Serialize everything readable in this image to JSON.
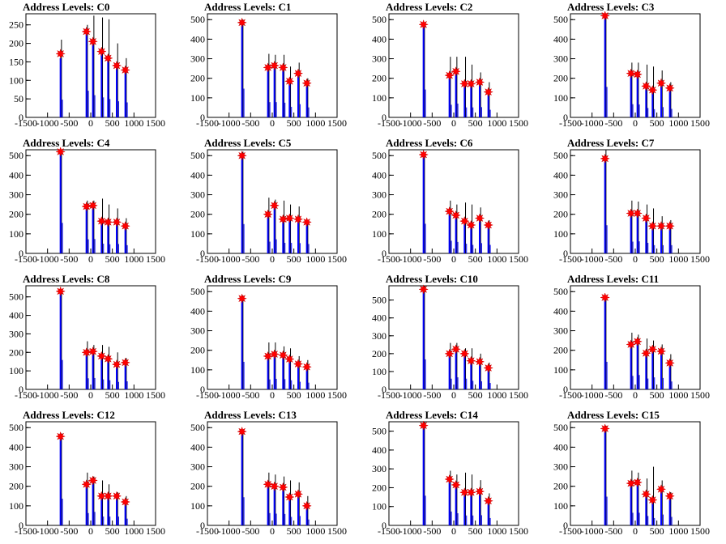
{
  "figure": {
    "background": "#ffffff",
    "histogram_color": "#0000ff",
    "raw_color": "#000000",
    "marker_color": "#ff0000"
  },
  "chart_data": [
    {
      "type": "bar",
      "title": "Address Levels: C0",
      "xlim": [
        -1500,
        1500
      ],
      "ylim": [
        0,
        280
      ],
      "xticks": [
        -1500,
        -1000,
        -500,
        0,
        500,
        1000,
        1500
      ],
      "yticks": [
        0,
        50,
        100,
        150,
        200,
        250
      ],
      "peaks_x": [
        -700,
        -100,
        50,
        250,
        400,
        600,
        800
      ],
      "raw_heights": [
        210,
        250,
        275,
        270,
        265,
        200,
        160
      ],
      "hist_heights": [
        160,
        240,
        200,
        180,
        165,
        145,
        135
      ],
      "markers_y": [
        172,
        232,
        205,
        178,
        160,
        140,
        128
      ]
    },
    {
      "type": "bar",
      "title": "Address Levels: C1",
      "xlim": [
        -1500,
        1500
      ],
      "ylim": [
        0,
        530
      ],
      "xticks": [
        -1500,
        -1000,
        -500,
        0,
        500,
        1000,
        1500
      ],
      "yticks": [
        0,
        100,
        200,
        300,
        400,
        500
      ],
      "peaks_x": [
        -700,
        -100,
        50,
        250,
        400,
        600,
        800
      ],
      "raw_heights": [
        500,
        325,
        320,
        320,
        260,
        280,
        200
      ],
      "hist_heights": [
        490,
        260,
        260,
        250,
        180,
        225,
        170
      ],
      "markers_y": [
        485,
        255,
        265,
        255,
        185,
        225,
        175
      ]
    },
    {
      "type": "bar",
      "title": "Address Levels: C2",
      "xlim": [
        -1500,
        1500
      ],
      "ylim": [
        0,
        530
      ],
      "xticks": [
        -1500,
        -1000,
        -500,
        0,
        500,
        1000,
        1500
      ],
      "yticks": [
        0,
        100,
        200,
        300,
        400,
        500
      ],
      "peaks_x": [
        -700,
        -100,
        50,
        250,
        400,
        600,
        800
      ],
      "raw_heights": [
        480,
        310,
        310,
        310,
        270,
        230,
        180
      ],
      "hist_heights": [
        475,
        215,
        235,
        170,
        170,
        175,
        130
      ],
      "markers_y": [
        475,
        215,
        235,
        172,
        172,
        180,
        130
      ]
    },
    {
      "type": "bar",
      "title": "Address Levels: C3",
      "xlim": [
        -1500,
        1500
      ],
      "ylim": [
        0,
        530
      ],
      "xticks": [
        -1500,
        -1000,
        -500,
        0,
        500,
        1000,
        1500
      ],
      "yticks": [
        0,
        100,
        200,
        300,
        400,
        500
      ],
      "peaks_x": [
        -700,
        -100,
        50,
        250,
        400,
        600,
        800
      ],
      "raw_heights": [
        530,
        280,
        280,
        270,
        260,
        240,
        180
      ],
      "hist_heights": [
        520,
        225,
        220,
        160,
        140,
        175,
        145
      ],
      "markers_y": [
        520,
        225,
        220,
        160,
        140,
        175,
        150
      ]
    },
    {
      "type": "bar",
      "title": "Address Levels: C4",
      "xlim": [
        -1500,
        1500
      ],
      "ylim": [
        0,
        530
      ],
      "xticks": [
        -1500,
        -1000,
        -500,
        0,
        500,
        1000,
        1500
      ],
      "yticks": [
        0,
        100,
        200,
        300,
        400,
        500
      ],
      "peaks_x": [
        -700,
        -100,
        50,
        250,
        400,
        600,
        800
      ],
      "raw_heights": [
        530,
        270,
        270,
        280,
        250,
        230,
        180
      ],
      "hist_heights": [
        520,
        240,
        245,
        165,
        155,
        160,
        140
      ],
      "markers_y": [
        520,
        240,
        245,
        165,
        160,
        160,
        140
      ]
    },
    {
      "type": "bar",
      "title": "Address Levels: C5",
      "xlim": [
        -1500,
        1500
      ],
      "ylim": [
        0,
        530
      ],
      "xticks": [
        -1500,
        -1000,
        -500,
        0,
        500,
        1000,
        1500
      ],
      "yticks": [
        0,
        100,
        200,
        300,
        400,
        500
      ],
      "peaks_x": [
        -700,
        -100,
        50,
        250,
        400,
        600,
        800
      ],
      "raw_heights": [
        520,
        285,
        275,
        270,
        250,
        240,
        170
      ],
      "hist_heights": [
        500,
        200,
        240,
        180,
        180,
        175,
        160
      ],
      "markers_y": [
        500,
        200,
        245,
        175,
        180,
        175,
        160
      ]
    },
    {
      "type": "bar",
      "title": "Address Levels: C6",
      "xlim": [
        -1500,
        1500
      ],
      "ylim": [
        0,
        530
      ],
      "xticks": [
        -1500,
        -1000,
        -500,
        0,
        500,
        1000,
        1500
      ],
      "yticks": [
        0,
        100,
        200,
        300,
        400,
        500
      ],
      "peaks_x": [
        -700,
        -100,
        50,
        250,
        400,
        600,
        800
      ],
      "raw_heights": [
        510,
        270,
        250,
        260,
        250,
        235,
        170
      ],
      "hist_heights": [
        505,
        215,
        195,
        165,
        145,
        175,
        145
      ],
      "markers_y": [
        505,
        215,
        195,
        165,
        145,
        180,
        145
      ]
    },
    {
      "type": "bar",
      "title": "Address Levels: C7",
      "xlim": [
        -1500,
        1500
      ],
      "ylim": [
        0,
        530
      ],
      "xticks": [
        -1500,
        -1000,
        -500,
        0,
        500,
        1000,
        1500
      ],
      "yticks": [
        0,
        100,
        200,
        300,
        400,
        500
      ],
      "peaks_x": [
        -700,
        -100,
        50,
        250,
        400,
        600,
        800
      ],
      "raw_heights": [
        530,
        270,
        265,
        250,
        230,
        190,
        170
      ],
      "hist_heights": [
        480,
        200,
        205,
        180,
        140,
        140,
        140
      ],
      "markers_y": [
        485,
        205,
        205,
        180,
        140,
        140,
        140
      ]
    },
    {
      "type": "bar",
      "title": "Address Levels: C8",
      "xlim": [
        -1500,
        1500
      ],
      "ylim": [
        0,
        560
      ],
      "xticks": [
        -1500,
        -1000,
        -500,
        0,
        500,
        1000,
        1500
      ],
      "yticks": [
        0,
        100,
        200,
        300,
        400,
        500
      ],
      "peaks_x": [
        -700,
        -100,
        50,
        250,
        400,
        600,
        800
      ],
      "raw_heights": [
        540,
        260,
        240,
        240,
        230,
        200,
        170
      ],
      "hist_heights": [
        530,
        200,
        205,
        180,
        165,
        135,
        145
      ],
      "markers_y": [
        530,
        200,
        205,
        180,
        165,
        135,
        145
      ]
    },
    {
      "type": "bar",
      "title": "Address Levels: C9",
      "xlim": [
        -1500,
        1500
      ],
      "ylim": [
        0,
        530
      ],
      "xticks": [
        -1500,
        -1000,
        -500,
        0,
        500,
        1000,
        1500
      ],
      "yticks": [
        0,
        100,
        200,
        300,
        400,
        500
      ],
      "peaks_x": [
        -700,
        -100,
        50,
        250,
        400,
        600,
        800
      ],
      "raw_heights": [
        480,
        240,
        240,
        220,
        210,
        170,
        150
      ],
      "hist_heights": [
        470,
        170,
        180,
        175,
        155,
        130,
        115
      ],
      "markers_y": [
        465,
        170,
        180,
        175,
        155,
        130,
        115
      ]
    },
    {
      "type": "bar",
      "title": "Address Levels: C10",
      "xlim": [
        -1500,
        1500
      ],
      "ylim": [
        0,
        580
      ],
      "xticks": [
        -1500,
        -1000,
        -500,
        0,
        500,
        1000,
        1500
      ],
      "yticks": [
        0,
        100,
        200,
        300,
        400,
        500
      ],
      "peaks_x": [
        -700,
        -100,
        50,
        250,
        400,
        600,
        800
      ],
      "raw_heights": [
        580,
        260,
        260,
        230,
        230,
        200,
        150
      ],
      "hist_heights": [
        560,
        200,
        225,
        200,
        160,
        150,
        120
      ],
      "markers_y": [
        560,
        200,
        225,
        200,
        160,
        155,
        120
      ]
    },
    {
      "type": "bar",
      "title": "Address Levels: C11",
      "xlim": [
        -1500,
        1500
      ],
      "ylim": [
        0,
        530
      ],
      "xticks": [
        -1500,
        -1000,
        -500,
        0,
        500,
        1000,
        1500
      ],
      "yticks": [
        0,
        100,
        200,
        300,
        400,
        500
      ],
      "peaks_x": [
        -700,
        -100,
        50,
        250,
        400,
        600,
        800
      ],
      "raw_heights": [
        480,
        290,
        280,
        260,
        250,
        230,
        180
      ],
      "hist_heights": [
        470,
        230,
        245,
        185,
        205,
        195,
        135
      ],
      "markers_y": [
        470,
        230,
        245,
        185,
        205,
        195,
        135
      ]
    },
    {
      "type": "bar",
      "title": "Address Levels: C12",
      "xlim": [
        -1500,
        1500
      ],
      "ylim": [
        0,
        530
      ],
      "xticks": [
        -1500,
        -1000,
        -500,
        0,
        500,
        1000,
        1500
      ],
      "yticks": [
        0,
        100,
        200,
        300,
        400,
        500
      ],
      "peaks_x": [
        -700,
        -100,
        50,
        250,
        400,
        600,
        800
      ],
      "raw_heights": [
        470,
        270,
        250,
        230,
        210,
        170,
        150
      ],
      "hist_heights": [
        455,
        210,
        230,
        150,
        150,
        150,
        115
      ],
      "markers_y": [
        455,
        210,
        230,
        150,
        150,
        150,
        120
      ]
    },
    {
      "type": "bar",
      "title": "Address Levels: C13",
      "xlim": [
        -1500,
        1500
      ],
      "ylim": [
        0,
        530
      ],
      "xticks": [
        -1500,
        -1000,
        -500,
        0,
        500,
        1000,
        1500
      ],
      "yticks": [
        0,
        100,
        200,
        300,
        400,
        500
      ],
      "peaks_x": [
        -700,
        -100,
        50,
        250,
        400,
        600,
        800
      ],
      "raw_heights": [
        490,
        270,
        260,
        250,
        230,
        220,
        150
      ],
      "hist_heights": [
        480,
        210,
        200,
        195,
        145,
        160,
        100
      ],
      "markers_y": [
        480,
        210,
        200,
        195,
        145,
        160,
        100
      ]
    },
    {
      "type": "bar",
      "title": "Address Levels: C14",
      "xlim": [
        -1500,
        1500
      ],
      "ylim": [
        0,
        550
      ],
      "xticks": [
        -1500,
        -1000,
        -500,
        0,
        500,
        1000,
        1500
      ],
      "yticks": [
        0,
        100,
        200,
        300,
        400,
        500
      ],
      "peaks_x": [
        -700,
        -100,
        50,
        250,
        400,
        600,
        800
      ],
      "raw_heights": [
        550,
        290,
        270,
        280,
        270,
        240,
        170
      ],
      "hist_heights": [
        525,
        245,
        215,
        175,
        175,
        180,
        130
      ],
      "markers_y": [
        530,
        245,
        215,
        175,
        175,
        180,
        130
      ]
    },
    {
      "type": "bar",
      "title": "Address Levels: C15",
      "xlim": [
        -1500,
        1500
      ],
      "ylim": [
        0,
        530
      ],
      "xticks": [
        -1500,
        -1000,
        -500,
        0,
        500,
        1000,
        1500
      ],
      "yticks": [
        0,
        100,
        200,
        300,
        400,
        500
      ],
      "peaks_x": [
        -700,
        -100,
        50,
        250,
        400,
        600,
        800
      ],
      "raw_heights": [
        510,
        280,
        270,
        240,
        300,
        230,
        170
      ],
      "hist_heights": [
        490,
        215,
        215,
        160,
        125,
        185,
        145
      ],
      "markers_y": [
        495,
        215,
        220,
        160,
        130,
        185,
        150
      ]
    }
  ]
}
